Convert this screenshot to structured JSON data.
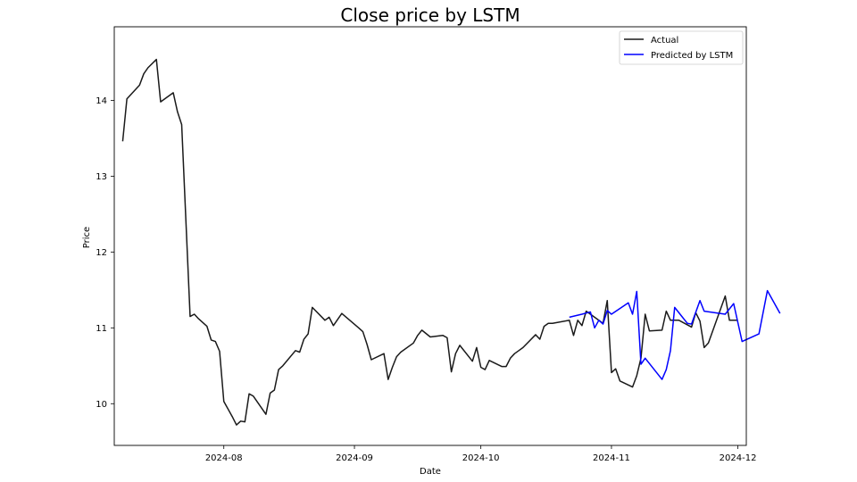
{
  "chart_data": {
    "type": "line",
    "title": "Close price by LSTM",
    "xlabel": "Date",
    "ylabel": "Price",
    "xlim": [
      "2024-07-06",
      "2024-12-03"
    ],
    "ylim": [
      9.45,
      14.97
    ],
    "grid": false,
    "legend_position": "top-right",
    "x_ticks": [
      "2024-08-01",
      "2024-09-01",
      "2024-10-01",
      "2024-11-01",
      "2024-12-01"
    ],
    "x_tick_labels": [
      "2024-08",
      "2024-09",
      "2024-10",
      "2024-11",
      "2024-12"
    ],
    "y_ticks": [
      10,
      11,
      12,
      13,
      14
    ],
    "y_tick_labels": [
      "10",
      "11",
      "12",
      "13",
      "14"
    ],
    "series": [
      {
        "name": "Actual",
        "color": "#1a1a1a",
        "points": [
          [
            "2024-07-08",
            13.46
          ],
          [
            "2024-07-09",
            14.02
          ],
          [
            "2024-07-12",
            14.2
          ],
          [
            "2024-07-13",
            14.35
          ],
          [
            "2024-07-14",
            14.43
          ],
          [
            "2024-07-16",
            14.54
          ],
          [
            "2024-07-17",
            13.98
          ],
          [
            "2024-07-20",
            14.1
          ],
          [
            "2024-07-21",
            13.85
          ],
          [
            "2024-07-22",
            13.68
          ],
          [
            "2024-07-24",
            11.15
          ],
          [
            "2024-07-25",
            11.18
          ],
          [
            "2024-07-26",
            11.12
          ],
          [
            "2024-07-28",
            11.02
          ],
          [
            "2024-07-29",
            10.84
          ],
          [
            "2024-07-30",
            10.82
          ],
          [
            "2024-07-31",
            10.69
          ],
          [
            "2024-08-01",
            10.03
          ],
          [
            "2024-08-03",
            9.83
          ],
          [
            "2024-08-04",
            9.72
          ],
          [
            "2024-08-05",
            9.77
          ],
          [
            "2024-08-06",
            9.76
          ],
          [
            "2024-08-07",
            10.13
          ],
          [
            "2024-08-08",
            10.1
          ],
          [
            "2024-08-11",
            9.86
          ],
          [
            "2024-08-12",
            10.14
          ],
          [
            "2024-08-13",
            10.18
          ],
          [
            "2024-08-14",
            10.45
          ],
          [
            "2024-08-15",
            10.5
          ],
          [
            "2024-08-18",
            10.7
          ],
          [
            "2024-08-19",
            10.68
          ],
          [
            "2024-08-20",
            10.85
          ],
          [
            "2024-08-21",
            10.92
          ],
          [
            "2024-08-22",
            11.27
          ],
          [
            "2024-08-25",
            11.1
          ],
          [
            "2024-08-26",
            11.14
          ],
          [
            "2024-08-27",
            11.03
          ],
          [
            "2024-08-29",
            11.19
          ],
          [
            "2024-09-02",
            11.0
          ],
          [
            "2024-09-03",
            10.95
          ],
          [
            "2024-09-04",
            10.78
          ],
          [
            "2024-09-05",
            10.58
          ],
          [
            "2024-09-08",
            10.66
          ],
          [
            "2024-09-09",
            10.32
          ],
          [
            "2024-09-10",
            10.48
          ],
          [
            "2024-09-11",
            10.62
          ],
          [
            "2024-09-12",
            10.68
          ],
          [
            "2024-09-15",
            10.8
          ],
          [
            "2024-09-16",
            10.9
          ],
          [
            "2024-09-17",
            10.97
          ],
          [
            "2024-09-19",
            10.88
          ],
          [
            "2024-09-22",
            10.9
          ],
          [
            "2024-09-23",
            10.87
          ],
          [
            "2024-09-24",
            10.42
          ],
          [
            "2024-09-25",
            10.66
          ],
          [
            "2024-09-26",
            10.77
          ],
          [
            "2024-09-29",
            10.56
          ],
          [
            "2024-09-30",
            10.74
          ],
          [
            "2024-10-01",
            10.48
          ],
          [
            "2024-10-02",
            10.45
          ],
          [
            "2024-10-03",
            10.57
          ],
          [
            "2024-10-06",
            10.49
          ],
          [
            "2024-10-07",
            10.49
          ],
          [
            "2024-10-08",
            10.6
          ],
          [
            "2024-10-09",
            10.66
          ],
          [
            "2024-10-10",
            10.7
          ],
          [
            "2024-10-11",
            10.74
          ],
          [
            "2024-10-14",
            10.91
          ],
          [
            "2024-10-15",
            10.85
          ],
          [
            "2024-10-16",
            11.02
          ],
          [
            "2024-10-17",
            11.06
          ],
          [
            "2024-10-18",
            11.06
          ],
          [
            "2024-10-22",
            11.1
          ],
          [
            "2024-10-23",
            10.9
          ],
          [
            "2024-10-24",
            11.1
          ],
          [
            "2024-10-25",
            11.03
          ],
          [
            "2024-10-26",
            11.22
          ],
          [
            "2024-10-27",
            11.18
          ],
          [
            "2024-10-30",
            11.06
          ],
          [
            "2024-10-31",
            11.36
          ],
          [
            "2024-11-01",
            10.41
          ],
          [
            "2024-11-02",
            10.46
          ],
          [
            "2024-11-03",
            10.3
          ],
          [
            "2024-11-06",
            10.22
          ],
          [
            "2024-11-07",
            10.37
          ],
          [
            "2024-11-08",
            10.6
          ],
          [
            "2024-11-09",
            11.18
          ],
          [
            "2024-11-10",
            10.96
          ],
          [
            "2024-11-13",
            10.97
          ],
          [
            "2024-11-14",
            11.22
          ],
          [
            "2024-11-15",
            11.1
          ],
          [
            "2024-11-17",
            11.1
          ],
          [
            "2024-11-20",
            11.01
          ],
          [
            "2024-11-21",
            11.2
          ],
          [
            "2024-11-22",
            11.09
          ],
          [
            "2024-11-23",
            10.74
          ],
          [
            "2024-11-24",
            10.8
          ],
          [
            "2024-11-28",
            11.42
          ],
          [
            "2024-11-29",
            11.1
          ],
          [
            "2024-12-01",
            11.1
          ]
        ]
      },
      {
        "name": "Predicted by LSTM",
        "color": "#0000ff",
        "points": [
          [
            "2024-10-22",
            11.14
          ],
          [
            "2024-10-25",
            11.18
          ],
          [
            "2024-10-27",
            11.21
          ],
          [
            "2024-10-28",
            11.0
          ],
          [
            "2024-10-29",
            11.1
          ],
          [
            "2024-10-30",
            11.05
          ],
          [
            "2024-10-31",
            11.23
          ],
          [
            "2024-11-01",
            11.18
          ],
          [
            "2024-11-05",
            11.33
          ],
          [
            "2024-11-06",
            11.18
          ],
          [
            "2024-11-07",
            11.48
          ],
          [
            "2024-11-08",
            10.52
          ],
          [
            "2024-11-09",
            10.6
          ],
          [
            "2024-11-13",
            10.32
          ],
          [
            "2024-11-14",
            10.45
          ],
          [
            "2024-11-15",
            10.7
          ],
          [
            "2024-11-16",
            11.27
          ],
          [
            "2024-11-19",
            11.06
          ],
          [
            "2024-11-20",
            11.05
          ],
          [
            "2024-11-22",
            11.36
          ],
          [
            "2024-11-23",
            11.22
          ],
          [
            "2024-11-28",
            11.18
          ],
          [
            "2024-11-30",
            11.32
          ],
          [
            "2024-12-02",
            10.82
          ],
          [
            "2024-12-06",
            10.92
          ],
          [
            "2024-12-08",
            11.49
          ],
          [
            "2024-12-11",
            11.19
          ]
        ]
      }
    ]
  }
}
